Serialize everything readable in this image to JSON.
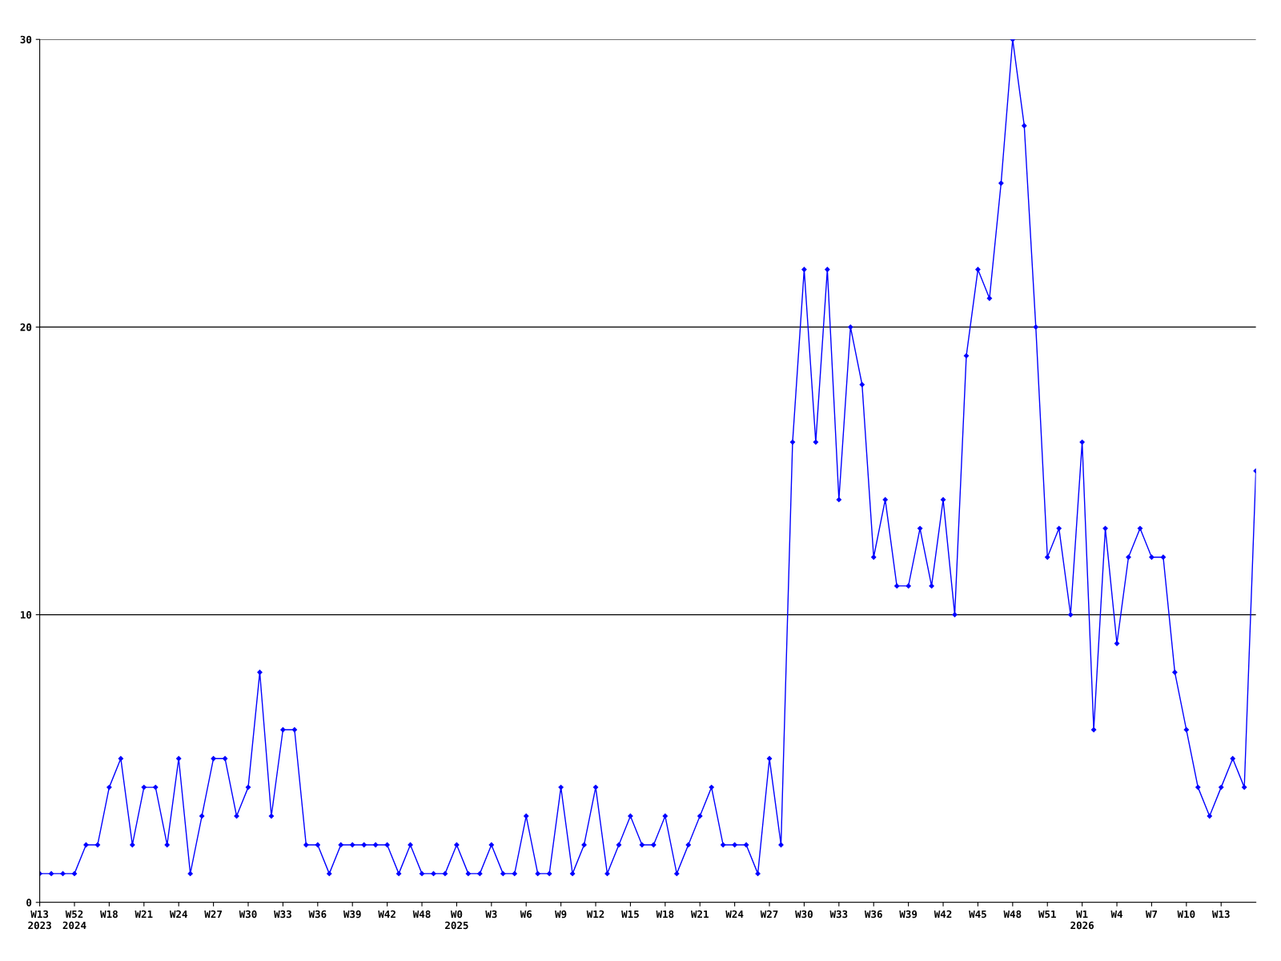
{
  "chart_data": {
    "type": "line",
    "categories": [
      "W13\n2023",
      null,
      null,
      "W52\n2024",
      null,
      null,
      "W18",
      null,
      null,
      "W21",
      null,
      null,
      "W24",
      null,
      null,
      "W27",
      null,
      null,
      "W30",
      null,
      null,
      "W33",
      null,
      null,
      "W36",
      null,
      null,
      "W39",
      null,
      null,
      "W42",
      null,
      null,
      "W48",
      null,
      null,
      "W0\n2025",
      null,
      null,
      "W3",
      null,
      null,
      "W6",
      null,
      null,
      "W9",
      null,
      null,
      "W12",
      null,
      null,
      "W15",
      null,
      null,
      "W18",
      null,
      null,
      "W21",
      null,
      null,
      "W24",
      null,
      null,
      "W27",
      null,
      null,
      "W30",
      null,
      null,
      "W33",
      null,
      null,
      "W36",
      null,
      null,
      "W39",
      null,
      null,
      "W42",
      null,
      null,
      "W45",
      null,
      null,
      "W48",
      null,
      null,
      "W51",
      null,
      null,
      "W1\n2026",
      null,
      null,
      "W4",
      null,
      null,
      "W7",
      null,
      null,
      "W10",
      null,
      null,
      "W13",
      null,
      null,
      null
    ],
    "series": [
      {
        "color": "#0000ff",
        "values": [
          1,
          1,
          1,
          1,
          2,
          2,
          4,
          5,
          2,
          4,
          4,
          2,
          5,
          1,
          3,
          5,
          5,
          3,
          4,
          8,
          3,
          6,
          6,
          2,
          2,
          1,
          2,
          2,
          2,
          2,
          2,
          1,
          2,
          1,
          1,
          1,
          2,
          1,
          1,
          2,
          1,
          1,
          3,
          1,
          1,
          4,
          1,
          2,
          4,
          1,
          2,
          3,
          2,
          2,
          3,
          1,
          2,
          3,
          4,
          2,
          2,
          2,
          1,
          5,
          2,
          16,
          22,
          16,
          22,
          14,
          20,
          18,
          12,
          14,
          11,
          11,
          13,
          11,
          14,
          10,
          19,
          22,
          21,
          25,
          30,
          27,
          20,
          12,
          13,
          10,
          16,
          6,
          13,
          9,
          12,
          13,
          12,
          12,
          8,
          6,
          4,
          3,
          4,
          5,
          4,
          15
        ]
      }
    ],
    "ylim": [
      0,
      30
    ],
    "yticks": [
      0,
      10,
      20,
      30
    ],
    "grid": "y",
    "marker": "diamond",
    "line_style": "solid",
    "legend": false
  }
}
